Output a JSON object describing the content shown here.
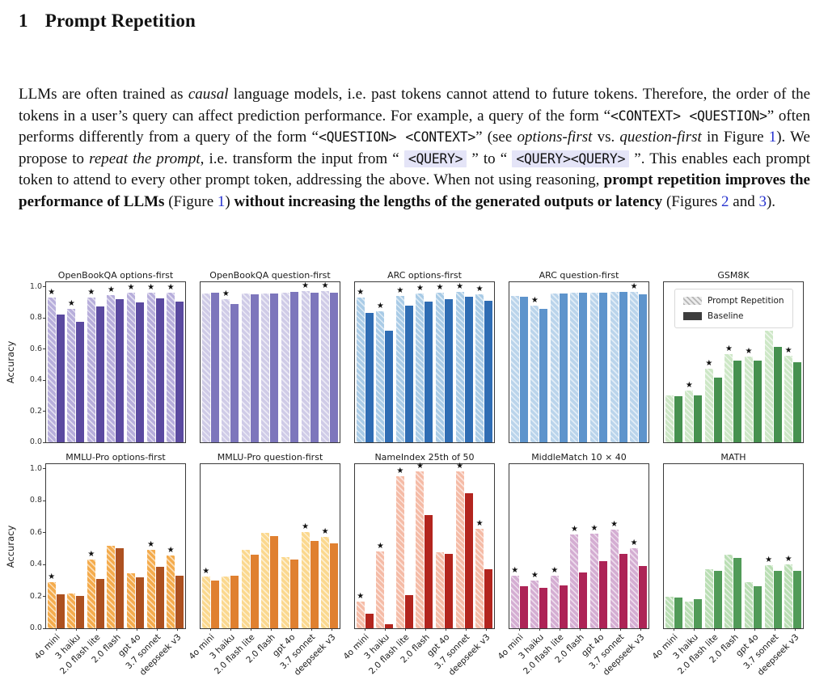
{
  "section": {
    "number": "1",
    "title": "Prompt Repetition"
  },
  "paragraph": {
    "segments": [
      {
        "t": "LLMs are often trained as ",
        "s": "n"
      },
      {
        "t": "causal",
        "s": "i"
      },
      {
        "t": " language models, i.e. past tokens cannot attend to future tokens. Therefore, the order of the tokens in a user’s query can affect prediction performance. For example, a query of the form “",
        "s": "n"
      },
      {
        "t": "<CONTEXT> <QUESTION>",
        "s": "c"
      },
      {
        "t": "” often performs differently from a query of the form “",
        "s": "n"
      },
      {
        "t": "<QUESTION> <CONTEXT>",
        "s": "c"
      },
      {
        "t": "” (see ",
        "s": "n"
      },
      {
        "t": "options-first",
        "s": "i"
      },
      {
        "t": " vs. ",
        "s": "n"
      },
      {
        "t": "question-first",
        "s": "i"
      },
      {
        "t": " in Figure ",
        "s": "n"
      },
      {
        "t": "1",
        "s": "l"
      },
      {
        "t": "). We propose to ",
        "s": "n"
      },
      {
        "t": "repeat the prompt",
        "s": "i"
      },
      {
        "t": ", i.e. transform the input from “ ",
        "s": "n"
      },
      {
        "t": "<QUERY>",
        "s": "h"
      },
      {
        "t": " ” to “ ",
        "s": "n"
      },
      {
        "t": "<QUERY><QUERY>",
        "s": "h"
      },
      {
        "t": " ”. This enables each prompt token to attend to every other prompt token, addressing the above. When not using reasoning, ",
        "s": "n"
      },
      {
        "t": "prompt repetition improves the performance of LLMs",
        "s": "b"
      },
      {
        "t": " (Figure ",
        "s": "n"
      },
      {
        "t": "1",
        "s": "l"
      },
      {
        "t": ") ",
        "s": "n"
      },
      {
        "t": "without increasing the lengths of the generated outputs or latency",
        "s": "b"
      },
      {
        "t": " (Figures ",
        "s": "n"
      },
      {
        "t": "2",
        "s": "l"
      },
      {
        "t": " and ",
        "s": "n"
      },
      {
        "t": "3",
        "s": "l"
      },
      {
        "t": ").",
        "s": "n"
      }
    ]
  },
  "chart_data": {
    "type": "bar",
    "categories": [
      "4o mini",
      "3 haiku",
      "2.0 flash lite",
      "2.0 flash",
      "gpt 4o",
      "3.7 sonnet",
      "deepseek v3"
    ],
    "ylabel": "Accuracy",
    "ylim": [
      0,
      1.0
    ],
    "yticks": [
      "0.0",
      "0.2",
      "0.4",
      "0.6",
      "0.8",
      "1.0"
    ],
    "grid": false,
    "legend": {
      "position": "upper-left of GSM8K subplot",
      "entries": [
        "Prompt Repetition",
        "Baseline"
      ]
    },
    "annotation": "black star above Prompt Repetition bar marks significance",
    "charts": [
      {
        "title": "OpenBookQA options-first",
        "row": 0,
        "show_yaxis": true,
        "show_xlabels": false,
        "legend": false,
        "colors": {
          "pr": "#b7aedb",
          "base": "#5b4aa0"
        },
        "series": [
          {
            "name": "Prompt Repetition",
            "values": [
              0.93,
              0.86,
              0.93,
              0.945,
              0.96,
              0.965,
              0.965
            ]
          },
          {
            "name": "Baseline",
            "values": [
              0.82,
              0.775,
              0.875,
              0.92,
              0.9,
              0.925,
              0.905
            ]
          }
        ],
        "stars": [
          1,
          1,
          1,
          1,
          1,
          1,
          1
        ]
      },
      {
        "title": "OpenBookQA question-first",
        "row": 0,
        "show_yaxis": false,
        "show_xlabels": false,
        "legend": false,
        "colors": {
          "pr": "#cfcbe7",
          "base": "#7d76bc"
        },
        "series": [
          {
            "name": "Prompt Repetition",
            "values": [
              0.955,
              0.92,
              0.955,
              0.955,
              0.965,
              0.975,
              0.975
            ]
          },
          {
            "name": "Baseline",
            "values": [
              0.96,
              0.89,
              0.95,
              0.955,
              0.97,
              0.96,
              0.965
            ]
          }
        ],
        "stars": [
          0,
          1,
          0,
          0,
          0,
          1,
          1
        ]
      },
      {
        "title": "ARC options-first",
        "row": 0,
        "show_yaxis": false,
        "show_xlabels": false,
        "legend": false,
        "colors": {
          "pr": "#a9cbe6",
          "base": "#2f6db4"
        },
        "series": [
          {
            "name": "Prompt Repetition",
            "values": [
              0.93,
              0.845,
              0.94,
              0.955,
              0.965,
              0.97,
              0.95
            ]
          },
          {
            "name": "Baseline",
            "values": [
              0.83,
              0.72,
              0.88,
              0.905,
              0.92,
              0.935,
              0.91
            ]
          }
        ],
        "stars": [
          1,
          1,
          1,
          1,
          1,
          1,
          1
        ]
      },
      {
        "title": "ARC question-first",
        "row": 0,
        "show_yaxis": false,
        "show_xlabels": false,
        "legend": false,
        "colors": {
          "pr": "#bad4eb",
          "base": "#5e94cc"
        },
        "series": [
          {
            "name": "Prompt Repetition",
            "values": [
              0.94,
              0.88,
              0.955,
              0.96,
              0.965,
              0.97,
              0.97
            ]
          },
          {
            "name": "Baseline",
            "values": [
              0.935,
              0.86,
              0.955,
              0.965,
              0.965,
              0.97,
              0.95
            ]
          }
        ],
        "stars": [
          0,
          1,
          0,
          0,
          0,
          0,
          1
        ]
      },
      {
        "title": "GSM8K",
        "row": 0,
        "show_yaxis": false,
        "show_xlabels": false,
        "legend": true,
        "colors": {
          "pr": "#cde7c6",
          "base": "#46914f"
        },
        "series": [
          {
            "name": "Prompt Repetition",
            "values": [
              0.3,
              0.335,
              0.475,
              0.565,
              0.55,
              0.72,
              0.555
            ]
          },
          {
            "name": "Baseline",
            "values": [
              0.295,
              0.3,
              0.415,
              0.525,
              0.525,
              0.615,
              0.515
            ]
          }
        ],
        "stars": [
          0,
          1,
          1,
          1,
          1,
          1,
          1
        ]
      },
      {
        "title": "MMLU-Pro options-first",
        "row": 1,
        "show_yaxis": true,
        "show_xlabels": true,
        "legend": false,
        "colors": {
          "pr": "#f4ab4c",
          "base": "#ad5120"
        },
        "series": [
          {
            "name": "Prompt Repetition",
            "values": [
              0.29,
              0.22,
              0.43,
              0.52,
              0.345,
              0.49,
              0.455
            ]
          },
          {
            "name": "Baseline",
            "values": [
              0.215,
              0.205,
              0.31,
              0.5,
              0.32,
              0.385,
              0.33
            ]
          }
        ],
        "stars": [
          1,
          0,
          1,
          0,
          0,
          1,
          1
        ]
      },
      {
        "title": "MMLU-Pro question-first",
        "row": 1,
        "show_yaxis": false,
        "show_xlabels": true,
        "legend": false,
        "colors": {
          "pr": "#fbd88e",
          "base": "#e08030"
        },
        "series": [
          {
            "name": "Prompt Repetition",
            "values": [
              0.325,
              0.325,
              0.49,
              0.6,
              0.445,
              0.605,
              0.575
            ]
          },
          {
            "name": "Baseline",
            "values": [
              0.3,
              0.33,
              0.46,
              0.58,
              0.43,
              0.55,
              0.535
            ]
          }
        ],
        "stars": [
          1,
          0,
          0,
          0,
          0,
          1,
          1
        ]
      },
      {
        "title": "NameIndex 25th of 50",
        "row": 1,
        "show_yaxis": false,
        "show_xlabels": true,
        "legend": false,
        "colors": {
          "pr": "#f5bba6",
          "base": "#b3251e"
        },
        "series": [
          {
            "name": "Prompt Repetition",
            "values": [
              0.165,
              0.48,
              0.955,
              0.985,
              0.475,
              0.985,
              0.625
            ]
          },
          {
            "name": "Baseline",
            "values": [
              0.09,
              0.025,
              0.21,
              0.71,
              0.465,
              0.845,
              0.37
            ]
          }
        ],
        "stars": [
          1,
          1,
          1,
          1,
          0,
          1,
          1
        ]
      },
      {
        "title": "MiddleMatch 10 × 40",
        "row": 1,
        "show_yaxis": false,
        "show_xlabels": true,
        "legend": false,
        "colors": {
          "pr": "#d4add2",
          "base": "#ad2456"
        },
        "series": [
          {
            "name": "Prompt Repetition",
            "values": [
              0.33,
              0.3,
              0.33,
              0.59,
              0.595,
              0.62,
              0.5
            ]
          },
          {
            "name": "Baseline",
            "values": [
              0.265,
              0.255,
              0.27,
              0.35,
              0.42,
              0.465,
              0.39
            ]
          }
        ],
        "stars": [
          1,
          1,
          1,
          1,
          1,
          1,
          1
        ]
      },
      {
        "title": "MATH",
        "row": 1,
        "show_yaxis": false,
        "show_xlabels": true,
        "legend": false,
        "colors": {
          "pr": "#badeb4",
          "base": "#519b58"
        },
        "series": [
          {
            "name": "Prompt Repetition",
            "values": [
              0.2,
              0.165,
              0.37,
              0.46,
              0.29,
              0.395,
              0.4
            ]
          },
          {
            "name": "Baseline",
            "values": [
              0.195,
              0.185,
              0.36,
              0.44,
              0.265,
              0.36,
              0.36
            ]
          }
        ],
        "stars": [
          0,
          0,
          0,
          0,
          0,
          1,
          1
        ]
      }
    ]
  }
}
